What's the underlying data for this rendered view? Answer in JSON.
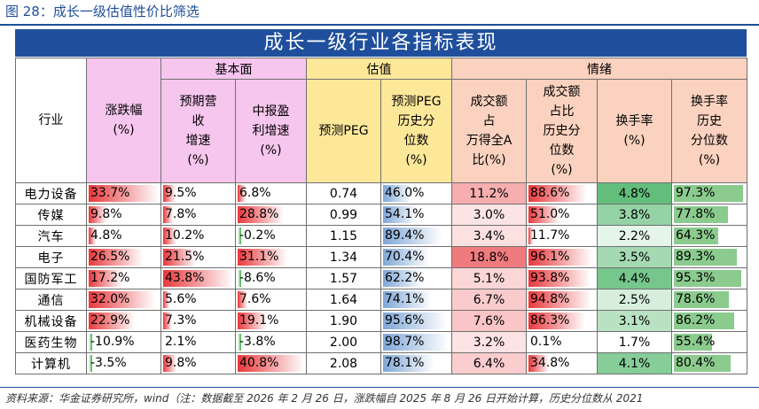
{
  "figure_title": "图 28：成长一级估值性价比筛选",
  "table_title": "成长一级行业各指标表现",
  "groups": {
    "basic": "基本面",
    "valuation": "估值",
    "sentiment": "情绪"
  },
  "headers": {
    "industry": "行业",
    "change": "涨跌幅\n(%)",
    "rev": "预期营\n收\n增速\n(%)",
    "profit": "中报盈\n利增速\n(%)",
    "peg": "预测PEG",
    "peg_pct": "预测PEG\n历史分\n位数\n(%)",
    "turnover_share": "成交额\n占\n万得全A\n比(%)",
    "turnover_share_pct": "成交额\n占比\n历史分\n位数\n(%)",
    "turnover_rate": "换手率\n(%)",
    "turnover_rate_pct": "换手率\n历史\n分位数\n(%)"
  },
  "colors": {
    "red": "#e8383c",
    "blue": "#7fa7d6",
    "light_red": "#f2a4a7",
    "green": "#77c27a"
  },
  "rows": [
    {
      "name": "电力设备",
      "change": "33.7%",
      "change_v": 33.7,
      "rev": "9.5%",
      "rev_v": 9.5,
      "profit": "6.8%",
      "profit_v": 6.8,
      "peg": "0.74",
      "peg_pct": "46.0%",
      "peg_pct_v": 46.0,
      "ts": "11.2%",
      "ts_v": 11.2,
      "tsp": "88.6%",
      "tsp_v": 88.6,
      "tr": "4.8%",
      "tr_v": 4.8,
      "trp": "97.3%",
      "trp_v": 97.3
    },
    {
      "name": "传媒",
      "change": "9.8%",
      "change_v": 9.8,
      "rev": "7.8%",
      "rev_v": 7.8,
      "profit": "28.8%",
      "profit_v": 28.8,
      "peg": "0.99",
      "peg_pct": "54.1%",
      "peg_pct_v": 54.1,
      "ts": "3.0%",
      "ts_v": 3.0,
      "tsp": "51.0%",
      "tsp_v": 51.0,
      "tr": "3.8%",
      "tr_v": 3.8,
      "trp": "77.8%",
      "trp_v": 77.8
    },
    {
      "name": "汽车",
      "change": "4.8%",
      "change_v": 4.8,
      "rev": "10.2%",
      "rev_v": 10.2,
      "profit": "-0.2%",
      "profit_v": -0.2,
      "peg": "1.15",
      "peg_pct": "89.4%",
      "peg_pct_v": 89.4,
      "ts": "3.4%",
      "ts_v": 3.4,
      "tsp": "11.7%",
      "tsp_v": 11.7,
      "tr": "2.2%",
      "tr_v": 2.2,
      "trp": "64.3%",
      "trp_v": 64.3
    },
    {
      "name": "电子",
      "change": "26.5%",
      "change_v": 26.5,
      "rev": "21.5%",
      "rev_v": 21.5,
      "profit": "31.1%",
      "profit_v": 31.1,
      "peg": "1.34",
      "peg_pct": "70.4%",
      "peg_pct_v": 70.4,
      "ts": "18.8%",
      "ts_v": 18.8,
      "tsp": "96.1%",
      "tsp_v": 96.1,
      "tr": "3.5%",
      "tr_v": 3.5,
      "trp": "89.3%",
      "trp_v": 89.3
    },
    {
      "name": "国防军工",
      "change": "17.2%",
      "change_v": 17.2,
      "rev": "43.8%",
      "rev_v": 43.8,
      "profit": "-8.6%",
      "profit_v": -8.6,
      "peg": "1.57",
      "peg_pct": "62.2%",
      "peg_pct_v": 62.2,
      "ts": "5.1%",
      "ts_v": 5.1,
      "tsp": "93.8%",
      "tsp_v": 93.8,
      "tr": "4.4%",
      "tr_v": 4.4,
      "trp": "95.3%",
      "trp_v": 95.3
    },
    {
      "name": "通信",
      "change": "32.0%",
      "change_v": 32.0,
      "rev": "5.6%",
      "rev_v": 5.6,
      "profit": "7.6%",
      "profit_v": 7.6,
      "peg": "1.64",
      "peg_pct": "74.1%",
      "peg_pct_v": 74.1,
      "ts": "6.7%",
      "ts_v": 6.7,
      "tsp": "94.8%",
      "tsp_v": 94.8,
      "tr": "2.5%",
      "tr_v": 2.5,
      "trp": "78.6%",
      "trp_v": 78.6
    },
    {
      "name": "机械设备",
      "change": "22.9%",
      "change_v": 22.9,
      "rev": "7.3%",
      "rev_v": 7.3,
      "profit": "19.1%",
      "profit_v": 19.1,
      "peg": "1.90",
      "peg_pct": "95.6%",
      "peg_pct_v": 95.6,
      "ts": "7.6%",
      "ts_v": 7.6,
      "tsp": "86.3%",
      "tsp_v": 86.3,
      "tr": "3.1%",
      "tr_v": 3.1,
      "trp": "86.2%",
      "trp_v": 86.2
    },
    {
      "name": "医药生物",
      "change": "-10.9%",
      "change_v": -10.9,
      "rev": "2.1%",
      "rev_v": 2.1,
      "profit": "-3.8%",
      "profit_v": -3.8,
      "peg": "2.00",
      "peg_pct": "98.7%",
      "peg_pct_v": 98.7,
      "ts": "3.2%",
      "ts_v": 3.2,
      "tsp": "0.1%",
      "tsp_v": 0.1,
      "tr": "1.7%",
      "tr_v": 1.7,
      "trp": "55.4%",
      "trp_v": 55.4
    },
    {
      "name": "计算机",
      "change": "-3.5%",
      "change_v": -3.5,
      "rev": "9.8%",
      "rev_v": 9.8,
      "profit": "40.8%",
      "profit_v": 40.8,
      "peg": "2.08",
      "peg_pct": "78.1%",
      "peg_pct_v": 78.1,
      "ts": "6.4%",
      "ts_v": 6.4,
      "tsp": "34.8%",
      "tsp_v": 34.8,
      "tr": "4.1%",
      "tr_v": 4.1,
      "trp": "80.4%",
      "trp_v": 80.4
    }
  ],
  "source": "资料来源：华金证券研究所，wind（注：数据截至 2026 年 2 月 26 日，涨跌幅自 2025 年 8 月 26 日开始计算，历史分位数从 2021"
}
